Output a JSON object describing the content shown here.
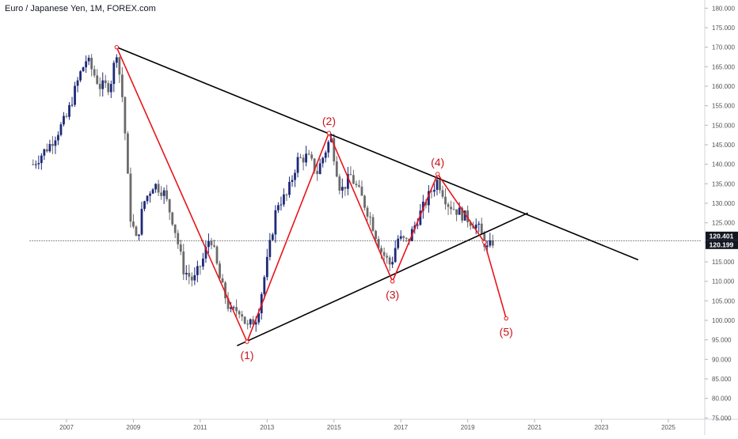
{
  "symbol_title": "Euro / Japanese Yen, 1M, FOREX.com",
  "colors": {
    "up": "#1e2a78",
    "down": "#6b6b6b",
    "wave": "#e8141b",
    "trendline": "#000000",
    "price_label_bg": "#131722",
    "price_label_text": "#ffffff",
    "axis_text": "#555555"
  },
  "chart_data": {
    "type": "candlestick",
    "title": "Euro / Japanese Yen, 1M, FOREX.com",
    "timeframe": "1M",
    "y_ticks": [
      "75.000",
      "80.000",
      "85.000",
      "90.000",
      "95.000",
      "100.000",
      "105.000",
      "110.000",
      "115.000",
      "120.000",
      "125.000",
      "130.000",
      "135.000",
      "140.000",
      "145.000",
      "150.000",
      "155.000",
      "160.000",
      "165.000",
      "170.000",
      "175.000",
      "180.000"
    ],
    "x_ticks": [
      "2007",
      "2009",
      "2011",
      "2013",
      "2015",
      "2017",
      "2019",
      "2021",
      "2023",
      "2025"
    ],
    "ylim": [
      75,
      180
    ],
    "xlim": [
      2005.9,
      2026.0
    ],
    "price_labels": [
      {
        "text": "120.401",
        "value": 120.401
      },
      {
        "text": "120.199",
        "value": 120.199
      }
    ],
    "price_anchors": [
      [
        2006.0,
        140.0
      ],
      [
        2006.5,
        145.0
      ],
      [
        2007.0,
        152.0
      ],
      [
        2007.4,
        163.0
      ],
      [
        2007.6,
        167.0
      ],
      [
        2008.0,
        160.0
      ],
      [
        2008.3,
        160.0
      ],
      [
        2008.5,
        169.0
      ],
      [
        2008.7,
        155.0
      ],
      [
        2008.9,
        127.0
      ],
      [
        2009.1,
        120.0
      ],
      [
        2009.3,
        130.0
      ],
      [
        2009.6,
        135.0
      ],
      [
        2009.9,
        133.0
      ],
      [
        2010.2,
        125.0
      ],
      [
        2010.5,
        113.0
      ],
      [
        2010.8,
        110.0
      ],
      [
        2011.1,
        116.0
      ],
      [
        2011.3,
        122.0
      ],
      [
        2011.6,
        110.0
      ],
      [
        2011.9,
        102.0
      ],
      [
        2012.2,
        103.0
      ],
      [
        2012.4,
        98.0
      ],
      [
        2012.7,
        101.0
      ],
      [
        2013.0,
        115.0
      ],
      [
        2013.3,
        130.0
      ],
      [
        2013.6,
        132.0
      ],
      [
        2013.9,
        141.0
      ],
      [
        2014.2,
        142.0
      ],
      [
        2014.5,
        138.0
      ],
      [
        2014.9,
        147.0
      ],
      [
        2015.2,
        133.0
      ],
      [
        2015.5,
        137.0
      ],
      [
        2015.8,
        132.0
      ],
      [
        2016.1,
        126.0
      ],
      [
        2016.4,
        118.0
      ],
      [
        2016.7,
        114.0
      ],
      [
        2016.9,
        121.0
      ],
      [
        2017.2,
        120.0
      ],
      [
        2017.5,
        126.0
      ],
      [
        2017.9,
        133.0
      ],
      [
        2018.1,
        136.0
      ],
      [
        2018.4,
        130.0
      ],
      [
        2018.7,
        128.0
      ],
      [
        2019.0,
        126.0
      ],
      [
        2019.3,
        124.0
      ],
      [
        2019.6,
        118.0
      ],
      [
        2019.75,
        120.2
      ]
    ],
    "trendlines": [
      {
        "name": "upper",
        "from": [
          2008.5,
          170.0
        ],
        "to": [
          2024.1,
          115.5
        ]
      },
      {
        "name": "lower",
        "from": [
          2012.1,
          93.5
        ],
        "to": [
          2020.8,
          127.5
        ]
      },
      {
        "name": "current-price",
        "from": [
          2005.9,
          120.401
        ],
        "to": [
          2026.0,
          120.401
        ],
        "dashed": true
      }
    ],
    "wave": {
      "points": [
        {
          "label": "",
          "x": 2008.5,
          "y": 170.0
        },
        {
          "label": "(1)",
          "x": 2012.4,
          "y": 94.5
        },
        {
          "label": "(2)",
          "x": 2014.85,
          "y": 148.0
        },
        {
          "label": "(3)",
          "x": 2016.75,
          "y": 110.0
        },
        {
          "label": "(4)",
          "x": 2018.1,
          "y": 137.5
        },
        {
          "label": "",
          "x": 2019.5,
          "y": 120.0
        },
        {
          "label": "(5)",
          "x": 2020.15,
          "y": 100.5
        }
      ]
    }
  }
}
